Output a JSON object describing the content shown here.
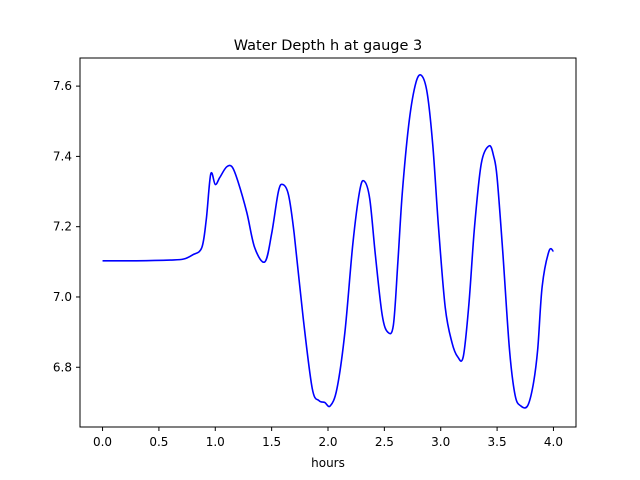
{
  "chart_data": {
    "type": "line",
    "title": "Water Depth h at gauge 3",
    "xlabel": "hours",
    "ylabel": "",
    "xlim": [
      -0.2,
      4.2
    ],
    "ylim": [
      6.63,
      7.68
    ],
    "xticks": [
      0.0,
      0.5,
      1.0,
      1.5,
      2.0,
      2.5,
      3.0,
      3.5,
      4.0
    ],
    "xtick_labels": [
      "0.0",
      "0.5",
      "1.0",
      "1.5",
      "2.0",
      "2.5",
      "3.0",
      "3.5",
      "4.0"
    ],
    "yticks": [
      6.8,
      7.0,
      7.2,
      7.4,
      7.6
    ],
    "ytick_labels": [
      "6.8",
      "7.0",
      "7.2",
      "7.4",
      "7.6"
    ],
    "grid": false,
    "series": [
      {
        "color": "#0000ff",
        "x": [
          0.0,
          0.3,
          0.6,
          0.72,
          0.8,
          0.88,
          0.92,
          0.96,
          1.0,
          1.04,
          1.1,
          1.15,
          1.2,
          1.28,
          1.35,
          1.44,
          1.5,
          1.56,
          1.6,
          1.65,
          1.7,
          1.78,
          1.86,
          1.92,
          1.97,
          2.02,
          2.08,
          2.15,
          2.22,
          2.28,
          2.32,
          2.37,
          2.42,
          2.48,
          2.53,
          2.58,
          2.62,
          2.66,
          2.72,
          2.78,
          2.83,
          2.88,
          2.93,
          2.98,
          3.04,
          3.1,
          3.15,
          3.2,
          3.25,
          3.3,
          3.36,
          3.43,
          3.47,
          3.5,
          3.55,
          3.61,
          3.66,
          3.71,
          3.77,
          3.82,
          3.86,
          3.9,
          3.96,
          4.0
        ],
        "y": [
          7.103,
          7.103,
          7.105,
          7.108,
          7.12,
          7.14,
          7.22,
          7.35,
          7.32,
          7.34,
          7.37,
          7.37,
          7.33,
          7.24,
          7.14,
          7.1,
          7.18,
          7.3,
          7.32,
          7.29,
          7.18,
          6.94,
          6.74,
          6.705,
          6.7,
          6.69,
          6.74,
          6.9,
          7.15,
          7.3,
          7.33,
          7.28,
          7.12,
          6.95,
          6.9,
          6.92,
          7.1,
          7.3,
          7.5,
          7.61,
          7.63,
          7.58,
          7.43,
          7.2,
          6.97,
          6.87,
          6.83,
          6.83,
          6.98,
          7.2,
          7.38,
          7.43,
          7.4,
          7.34,
          7.13,
          6.85,
          6.72,
          6.69,
          6.69,
          6.75,
          6.85,
          7.03,
          7.13,
          7.13
        ]
      }
    ]
  }
}
